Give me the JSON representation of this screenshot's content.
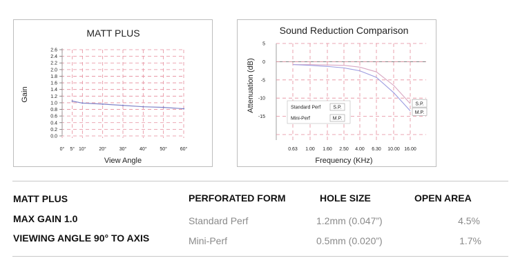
{
  "chart_data": [
    {
      "type": "line",
      "title": "MATT PLUS",
      "xlabel": "View Angle",
      "ylabel": "Gain",
      "x_ticks": [
        "0°",
        "5°",
        "10°",
        "20°",
        "30°",
        "40°",
        "50°",
        "60°"
      ],
      "x_tick_values": [
        0,
        5,
        10,
        20,
        30,
        40,
        50,
        60
      ],
      "y_ticks": [
        "0.0",
        "0.2",
        "0.4",
        "0.6",
        "0.8",
        "1.0",
        "1.2",
        "1.4",
        "1.6",
        "1.8",
        "2.0",
        "2.2",
        "2.4",
        "2.6"
      ],
      "xlim": [
        0,
        60
      ],
      "ylim": [
        0,
        2.6
      ],
      "grid": true,
      "grid_color": "#e58a9a",
      "series": [
        {
          "color": "#7f83c8",
          "x": [
            5,
            10,
            20,
            30,
            40,
            50,
            60
          ],
          "y": [
            1.05,
            0.99,
            0.96,
            0.92,
            0.88,
            0.86,
            0.82
          ]
        }
      ]
    },
    {
      "type": "line",
      "title": "Sound Reduction Comparison",
      "xlabel": "Frequency (KHz)",
      "ylabel": "Attenuation (dB)",
      "x_ticks": [
        "0.63",
        "1.00",
        "1.60",
        "2.50",
        "4.00",
        "6.30",
        "10.00",
        "16.00"
      ],
      "y_ticks": [
        "5",
        "0",
        "-5",
        "-10",
        "-15"
      ],
      "ylim": [
        -20,
        5
      ],
      "grid": true,
      "grid_color": "#e58a9a",
      "series": [
        {
          "name": "S.P.",
          "color": "#d8a6c2",
          "x": [
            "0.63",
            "1.00",
            "1.60",
            "2.50",
            "4.00",
            "6.30",
            "10.00",
            "16.00"
          ],
          "y": [
            -0.8,
            -0.8,
            -0.9,
            -1.0,
            -1.5,
            -2.8,
            -6.5,
            -11.5
          ]
        },
        {
          "name": "M.P.",
          "color": "#9b9be0",
          "x": [
            "0.63",
            "1.00",
            "1.60",
            "2.50",
            "4.00",
            "6.30",
            "10.00",
            "16.00"
          ],
          "y": [
            -0.8,
            -1.0,
            -1.3,
            -1.7,
            -2.5,
            -4.3,
            -8.5,
            -13.5
          ]
        }
      ],
      "legend": {
        "placement": "inside-left",
        "rows": [
          {
            "label": "Standard Perf",
            "tag": "S.P."
          },
          {
            "label": "Mini-Perf",
            "tag": "M.P."
          }
        ]
      }
    }
  ],
  "specs": {
    "product": "MATT PLUS",
    "max_gain": "MAX GAIN 1.0",
    "viewing_angle": "VIEWING ANGLE 90° TO AXIS",
    "headers": {
      "form": "PERFORATED FORM",
      "hole": "HOLE SIZE",
      "open": "OPEN AREA"
    },
    "rows": [
      {
        "form": "Standard Perf",
        "hole": "1.2mm (0.047”)",
        "open": "4.5%"
      },
      {
        "form": "Mini-Perf",
        "hole": "0.5mm (0.020”)",
        "open": "1.7%"
      }
    ]
  }
}
